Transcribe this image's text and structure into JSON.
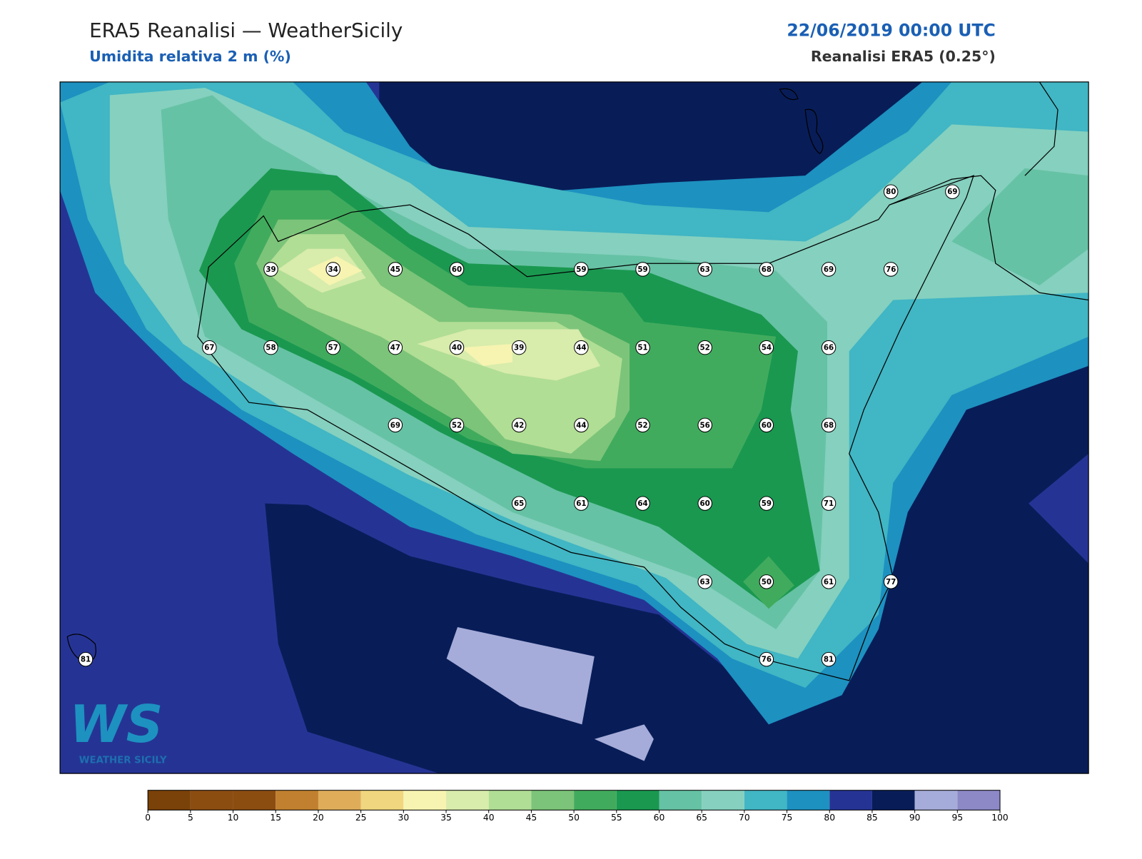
{
  "header": {
    "title": "ERA5 Reanalisi — WeatherSicily",
    "subtitle": "Umidita relativa 2 m (%)",
    "date": "22/06/2019 00:00 UTC",
    "source": "Reanalisi ERA5 (0.25°)"
  },
  "stations": [
    80,
    69,
    39,
    34,
    45,
    60,
    59,
    59,
    63,
    68,
    69,
    76,
    67,
    58,
    57,
    47,
    40,
    39,
    44,
    51,
    52,
    54,
    66,
    69,
    52,
    42,
    44,
    52,
    56,
    60,
    68,
    65,
    61,
    64,
    60,
    59,
    71,
    63,
    50,
    61,
    77,
    81,
    76,
    81
  ],
  "colorbar": {
    "ticks": [
      0,
      5,
      10,
      15,
      20,
      25,
      30,
      35,
      40,
      45,
      50,
      55,
      60,
      65,
      70,
      75,
      80,
      85,
      90,
      95,
      100
    ],
    "colors": [
      "#7a4109",
      "#8c4d11",
      "#8c4d11",
      "#c0802f",
      "#dfad5a",
      "#f0d67e",
      "#f6f4b0",
      "#d8ecac",
      "#b0de94",
      "#7cc47a",
      "#41ab5d",
      "#1a9850",
      "#66c2a4",
      "#85d0bf",
      "#41b6c4",
      "#1d91c0",
      "#253494",
      "#081d58",
      "#a6acd9",
      "#8c89c6"
    ]
  },
  "logo": {
    "mark": "WS",
    "text": "WEATHER SICILY"
  }
}
